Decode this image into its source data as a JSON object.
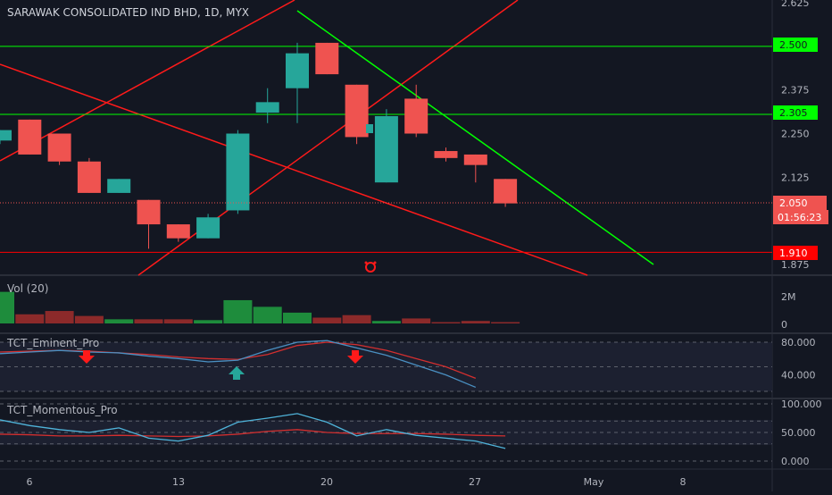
{
  "chart_data": {
    "type": "candlestick",
    "title": "SARAWAK CONSOLIDATED IND BHD, 1D, MYX",
    "symbol": "SARAWAK CONSOLIDATED IND BHD",
    "interval": "1D",
    "exchange": "MYX",
    "price_axis": {
      "ticks": [
        "2.625",
        "2.500",
        "2.375",
        "2.250",
        "2.125",
        "1.875"
      ],
      "range": [
        1.84,
        2.625
      ]
    },
    "time_axis": {
      "ticks": [
        "6",
        "13",
        "20",
        "27",
        "May",
        "8"
      ]
    },
    "candles": [
      {
        "d": "5",
        "o": 2.23,
        "h": 2.26,
        "l": 2.22,
        "c": 2.26
      },
      {
        "d": "6",
        "o": 2.29,
        "h": 2.29,
        "l": 2.19,
        "c": 2.19
      },
      {
        "d": "7",
        "o": 2.25,
        "h": 2.25,
        "l": 2.16,
        "c": 2.17
      },
      {
        "d": "8",
        "o": 2.17,
        "h": 2.18,
        "l": 2.08,
        "c": 2.08
      },
      {
        "d": "9",
        "o": 2.08,
        "h": 2.12,
        "l": 2.08,
        "c": 2.12
      },
      {
        "d": "12",
        "o": 2.06,
        "h": 2.06,
        "l": 1.92,
        "c": 1.99
      },
      {
        "d": "13",
        "o": 1.99,
        "h": 1.99,
        "l": 1.94,
        "c": 1.95
      },
      {
        "d": "14",
        "o": 1.95,
        "h": 2.02,
        "l": 1.95,
        "c": 2.01
      },
      {
        "d": "15",
        "o": 2.03,
        "h": 2.26,
        "l": 2.02,
        "c": 2.25
      },
      {
        "d": "16",
        "o": 2.31,
        "h": 2.38,
        "l": 2.28,
        "c": 2.34
      },
      {
        "d": "19",
        "o": 2.38,
        "h": 2.51,
        "l": 2.28,
        "c": 2.48
      },
      {
        "d": "20",
        "o": 2.51,
        "h": 2.51,
        "l": 2.42,
        "c": 2.42
      },
      {
        "d": "21",
        "o": 2.39,
        "h": 2.39,
        "l": 2.22,
        "c": 2.24
      },
      {
        "d": "22",
        "o": 2.11,
        "h": 2.32,
        "l": 2.11,
        "c": 2.3
      },
      {
        "d": "23",
        "o": 2.35,
        "h": 2.39,
        "l": 2.24,
        "c": 2.25
      },
      {
        "d": "26",
        "o": 2.2,
        "h": 2.21,
        "l": 2.17,
        "c": 2.18
      },
      {
        "d": "27",
        "o": 2.19,
        "h": 2.19,
        "l": 2.11,
        "c": 2.16
      },
      {
        "d": "28",
        "o": 2.12,
        "h": 2.12,
        "l": 2.04,
        "c": 2.05
      }
    ],
    "horizontal_lines": [
      {
        "price": 2.5,
        "label": "2.500",
        "color": "#00ff00"
      },
      {
        "price": 2.305,
        "label": "2.305",
        "color": "#00ff00"
      },
      {
        "price": 1.91,
        "label": "1.910",
        "color": "#ff0000"
      }
    ],
    "last_price": {
      "label": "2.050",
      "countdown": "01:56:23",
      "color": "#ef5350"
    },
    "volume": {
      "title": "Vol (20)",
      "ticks": [
        "2M",
        "0"
      ],
      "bars": [
        {
          "v": 1.9,
          "up": true
        },
        {
          "v": 0.55,
          "up": false
        },
        {
          "v": 0.75,
          "up": false
        },
        {
          "v": 0.45,
          "up": false
        },
        {
          "v": 0.25,
          "up": true
        },
        {
          "v": 0.25,
          "up": false
        },
        {
          "v": 0.25,
          "up": false
        },
        {
          "v": 0.2,
          "up": true
        },
        {
          "v": 1.4,
          "up": true
        },
        {
          "v": 1.0,
          "up": true
        },
        {
          "v": 0.65,
          "up": true
        },
        {
          "v": 0.35,
          "up": false
        },
        {
          "v": 0.5,
          "up": false
        },
        {
          "v": 0.15,
          "up": true
        },
        {
          "v": 0.3,
          "up": false
        },
        {
          "v": 0.08,
          "up": false
        },
        {
          "v": 0.15,
          "up": false
        },
        {
          "v": 0.08,
          "up": false
        }
      ],
      "max": 2.6
    },
    "indicator1": {
      "title": "TCT_Eminent_Pro",
      "ticks": [
        "80.000",
        "40.000"
      ],
      "range": [
        10,
        95
      ],
      "blue": [
        66,
        68,
        70,
        68,
        67,
        63,
        60,
        56,
        58,
        70,
        80,
        82,
        73,
        64,
        52,
        40,
        25
      ],
      "red": [
        68,
        69,
        70,
        69,
        67,
        65,
        62,
        60,
        59,
        65,
        76,
        80,
        77,
        70,
        60,
        50,
        36
      ]
    },
    "indicator2": {
      "title": "TCT_Momentous_Pro",
      "ticks": [
        "100.000",
        "50.000",
        "0.000"
      ],
      "range": [
        -5,
        105
      ],
      "blue": [
        72,
        62,
        55,
        50,
        58,
        40,
        35,
        45,
        68,
        75,
        83,
        68,
        44,
        55,
        45,
        40,
        35,
        22
      ],
      "red": [
        47,
        46,
        44,
        44,
        45,
        44,
        43,
        44,
        47,
        52,
        55,
        50,
        48,
        48,
        48,
        47,
        45,
        44
      ]
    }
  }
}
